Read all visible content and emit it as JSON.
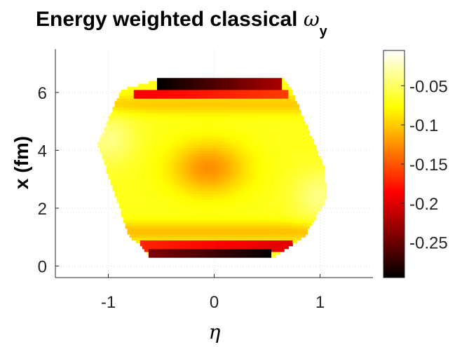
{
  "chart_data": {
    "type": "heatmap",
    "title": {
      "main": "Energy weighted classical ",
      "symbol": "ω",
      "subscript": "y"
    },
    "xlabel": "η",
    "ylabel": "x (fm)",
    "xlim": [
      -1.5,
      1.5
    ],
    "ylim": [
      -0.4,
      7.5
    ],
    "xticks": [
      -1,
      0,
      1
    ],
    "xtick_labels": [
      "-1",
      "0",
      "1"
    ],
    "yticks": [
      0,
      2,
      4,
      6
    ],
    "ytick_labels": [
      "0",
      "2",
      "4",
      "6"
    ],
    "grid": true,
    "colormap": "hot",
    "colorbar": {
      "range": [
        -0.295,
        -0.005
      ],
      "ticks": [
        -0.05,
        -0.1,
        -0.15,
        -0.2,
        -0.25
      ],
      "tick_labels": [
        "-0.05",
        "-0.1",
        "-0.15",
        "-0.2",
        "-0.25"
      ]
    },
    "region": {
      "description_values": "nonzero cells only inside this polygon, vertices as (eta, x)",
      "polygon": [
        [
          -0.53,
          6.45
        ],
        [
          0.65,
          6.45
        ],
        [
          0.72,
          6.15
        ],
        [
          1.03,
          3.5
        ],
        [
          1.07,
          2.4
        ],
        [
          0.85,
          1.0
        ],
        [
          0.74,
          0.75
        ],
        [
          0.55,
          0.3
        ],
        [
          -0.62,
          0.3
        ],
        [
          -0.69,
          0.75
        ],
        [
          -0.8,
          1.0
        ],
        [
          -1.1,
          4.2
        ],
        [
          -0.95,
          5.5
        ],
        [
          -0.87,
          6.1
        ],
        [
          -0.53,
          6.45
        ]
      ]
    },
    "value_model": {
      "base": -0.07,
      "center_trough": {
        "eta": -0.05,
        "x": 3.4,
        "depth": -0.055,
        "sigma_eta": 0.35,
        "sigma_x": 0.9
      },
      "edge_bands": [
        {
          "x_min": 6.1,
          "x_max": 6.45,
          "eta_min": -0.53,
          "eta_max": 0.65,
          "value_left": -0.295,
          "value_right": -0.22
        },
        {
          "x_min": 5.8,
          "x_max": 6.1,
          "eta_min": -0.75,
          "eta_max": 0.7,
          "value_left": -0.19,
          "value_right": -0.16
        },
        {
          "x_min": 0.3,
          "x_max": 0.55,
          "eta_min": -0.62,
          "eta_max": 0.55,
          "value_left": -0.24,
          "value_right": -0.295
        },
        {
          "x_min": 0.55,
          "x_max": 0.85,
          "eta_min": -0.7,
          "eta_max": 0.74,
          "value_left": -0.17,
          "value_right": -0.2
        }
      ]
    }
  }
}
